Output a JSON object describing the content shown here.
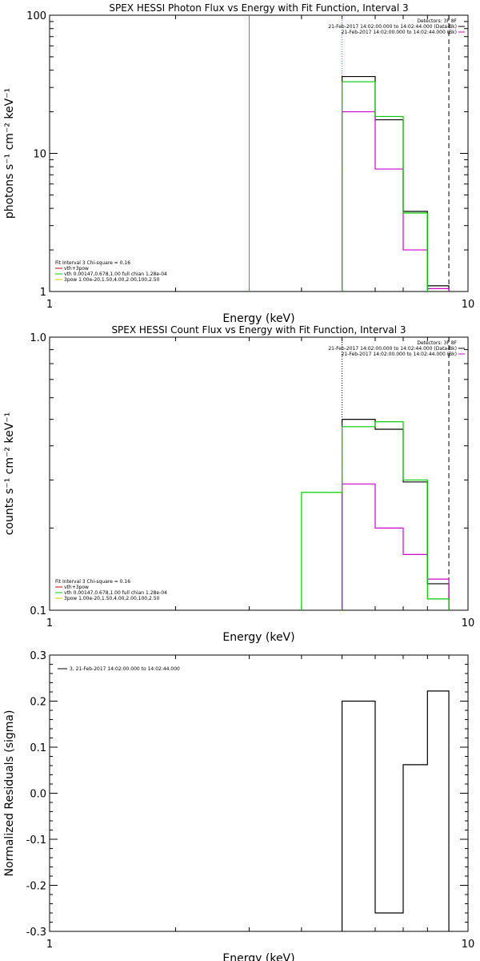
{
  "chart_data": [
    {
      "type": "line",
      "title": "SPEX HESSI Photon Flux vs Energy with Fit Function, Interval 3",
      "xlabel": "Energy (keV)",
      "ylabel": "photons s⁻¹ cm⁻² keV⁻¹",
      "xscale": "log",
      "yscale": "log",
      "xlim": [
        1,
        10
      ],
      "ylim": [
        1,
        100
      ],
      "xticks": [
        {
          "v": 1,
          "label": "1"
        },
        {
          "v": 10,
          "label": "10"
        }
      ],
      "yticks": [
        {
          "v": 1,
          "label": "1"
        },
        {
          "v": 10,
          "label": "10"
        },
        {
          "v": 100,
          "label": "100"
        }
      ],
      "series": [
        {
          "name": "21-Feb-2017 14:02:00.000 to 14:02:44.000 (Data-Bk)",
          "color": "#000000",
          "edges": [
            5,
            6,
            7,
            8,
            9
          ],
          "values": [
            36,
            17.5,
            3.8,
            1.1
          ]
        },
        {
          "name": "21-Feb-2017 14:02:00.000 to 14:02:44.000 (Bk)",
          "color": "#cc00cc",
          "edges": [
            5,
            6,
            7,
            8,
            9
          ],
          "values": [
            20,
            7.7,
            2.0,
            1.05
          ]
        },
        {
          "name": "vth 0.00147,0.678,1.00 full chian 1.28e-04",
          "color": "#00cc00",
          "edges": [
            5,
            6,
            7,
            8
          ],
          "values": [
            33,
            18.5,
            3.7
          ]
        }
      ],
      "vlines": [
        {
          "x": 3,
          "color": "#00cc00",
          "style": "solid"
        },
        {
          "x": 5,
          "color": "#00cc00",
          "style": "dotted"
        },
        {
          "x": 9,
          "color": "#000000",
          "style": "dashed"
        }
      ],
      "legend_top": [
        "Detectors: 3F 8F",
        "21-Feb-2017 14:02:00.000 to 14:02:44.000 (Data-Bk)",
        "21-Feb-2017 14:02:00.000 to 14:02:44.000 (Bk)"
      ],
      "legend_top_colors": [
        "",
        "#000000",
        "#cc00cc"
      ],
      "legend_bottom": [
        "Fit Interval 3   Chi-square = 0.16",
        "vth+3pow",
        "vth 0.00147,0.678,1.00  full chian 1.28e-04",
        "3pow 1.00e-20,1.50,4.00,2.00,100,2.50"
      ],
      "legend_bottom_colors": [
        "",
        "#cc0000",
        "#00cc00",
        "#cccc00"
      ]
    },
    {
      "type": "line",
      "title": "SPEX HESSI Count Flux vs Energy with Fit Function, Interval 3",
      "xlabel": "Energy (keV)",
      "ylabel": "counts s⁻¹ cm⁻² keV⁻¹",
      "xscale": "log",
      "yscale": "log",
      "xlim": [
        1,
        10
      ],
      "ylim": [
        0.1,
        1.0
      ],
      "xticks": [
        {
          "v": 1,
          "label": "1"
        },
        {
          "v": 10,
          "label": "10"
        }
      ],
      "yticks": [
        {
          "v": 0.1,
          "label": "0.1"
        },
        {
          "v": 1.0,
          "label": "1.0"
        }
      ],
      "series": [
        {
          "name": "21-Feb-2017 14:02:00.000 to 14:02:44.000 (Data-Bk)",
          "color": "#000000",
          "edges": [
            5,
            6,
            7,
            8,
            9
          ],
          "values": [
            0.5,
            0.46,
            0.295,
            0.125
          ]
        },
        {
          "name": "21-Feb-2017 14:02:00.000 to 14:02:44.000 (Bk)",
          "color": "#cc00cc",
          "edges": [
            5,
            6,
            7,
            8,
            9
          ],
          "values": [
            0.29,
            0.2,
            0.16,
            0.13
          ]
        },
        {
          "name": "vth 0.00147,0.678,1.00 full chian 1.28e-04",
          "color": "#00cc00",
          "edges": [
            4,
            5,
            6,
            7,
            8,
            9
          ],
          "values": [
            0.27,
            0.47,
            0.49,
            0.3,
            0.11
          ]
        }
      ],
      "vlines": [
        {
          "x": 5,
          "color": "#000000",
          "style": "dotted"
        },
        {
          "x": 9,
          "color": "#000000",
          "style": "dashed"
        }
      ],
      "legend_top": [
        "Detectors: 3F 8F",
        "21-Feb-2017 14:02:00.000 to 14:02:44.000 (Data-Bk)",
        "21-Feb-2017 14:02:00.000 to 14:02:44.000 (Bk)"
      ],
      "legend_top_colors": [
        "",
        "#000000",
        "#cc00cc"
      ],
      "legend_bottom": [
        "Fit Interval 3   Chi-square = 0.16",
        "vth+3pow",
        "vth 0.00147,0.678,1.00  full chian 1.28e-04",
        "3pow 1.00e-20,1.50,4.00,2.00,100,2.50"
      ],
      "legend_bottom_colors": [
        "",
        "#cc0000",
        "#00cc00",
        "#cccc00"
      ]
    },
    {
      "type": "line",
      "title": "",
      "xlabel": "Energy (keV)",
      "ylabel": "Normalized Residuals (sigma)",
      "xscale": "log",
      "yscale": "linear",
      "xlim": [
        1,
        10
      ],
      "ylim": [
        -0.3,
        0.3
      ],
      "xticks": [
        {
          "v": 1,
          "label": "1"
        },
        {
          "v": 10,
          "label": "10"
        }
      ],
      "yticks": [
        {
          "v": 0.3,
          "label": "0.3"
        },
        {
          "v": 0.2,
          "label": "0.2"
        },
        {
          "v": 0.1,
          "label": "0.1"
        },
        {
          "v": 0.0,
          "label": "0.0"
        },
        {
          "v": -0.1,
          "label": "-0.1"
        },
        {
          "v": -0.2,
          "label": "-0.2"
        },
        {
          "v": -0.3,
          "label": "-0.3"
        }
      ],
      "series": [
        {
          "name": "3, 21-Feb-2017 14:02:00.000 to 14:02:44.000",
          "color": "#000000",
          "edges": [
            5,
            6,
            7,
            8,
            9
          ],
          "values": [
            0.2,
            -0.26,
            0.062,
            0.222
          ]
        }
      ],
      "vlines": [],
      "legend_top": [
        "3, 21-Feb-2017 14:02:00.000 to 14:02:44.000"
      ],
      "legend_top_colors": [
        "#000000"
      ],
      "legend_bottom": [],
      "legend_bottom_colors": []
    }
  ]
}
